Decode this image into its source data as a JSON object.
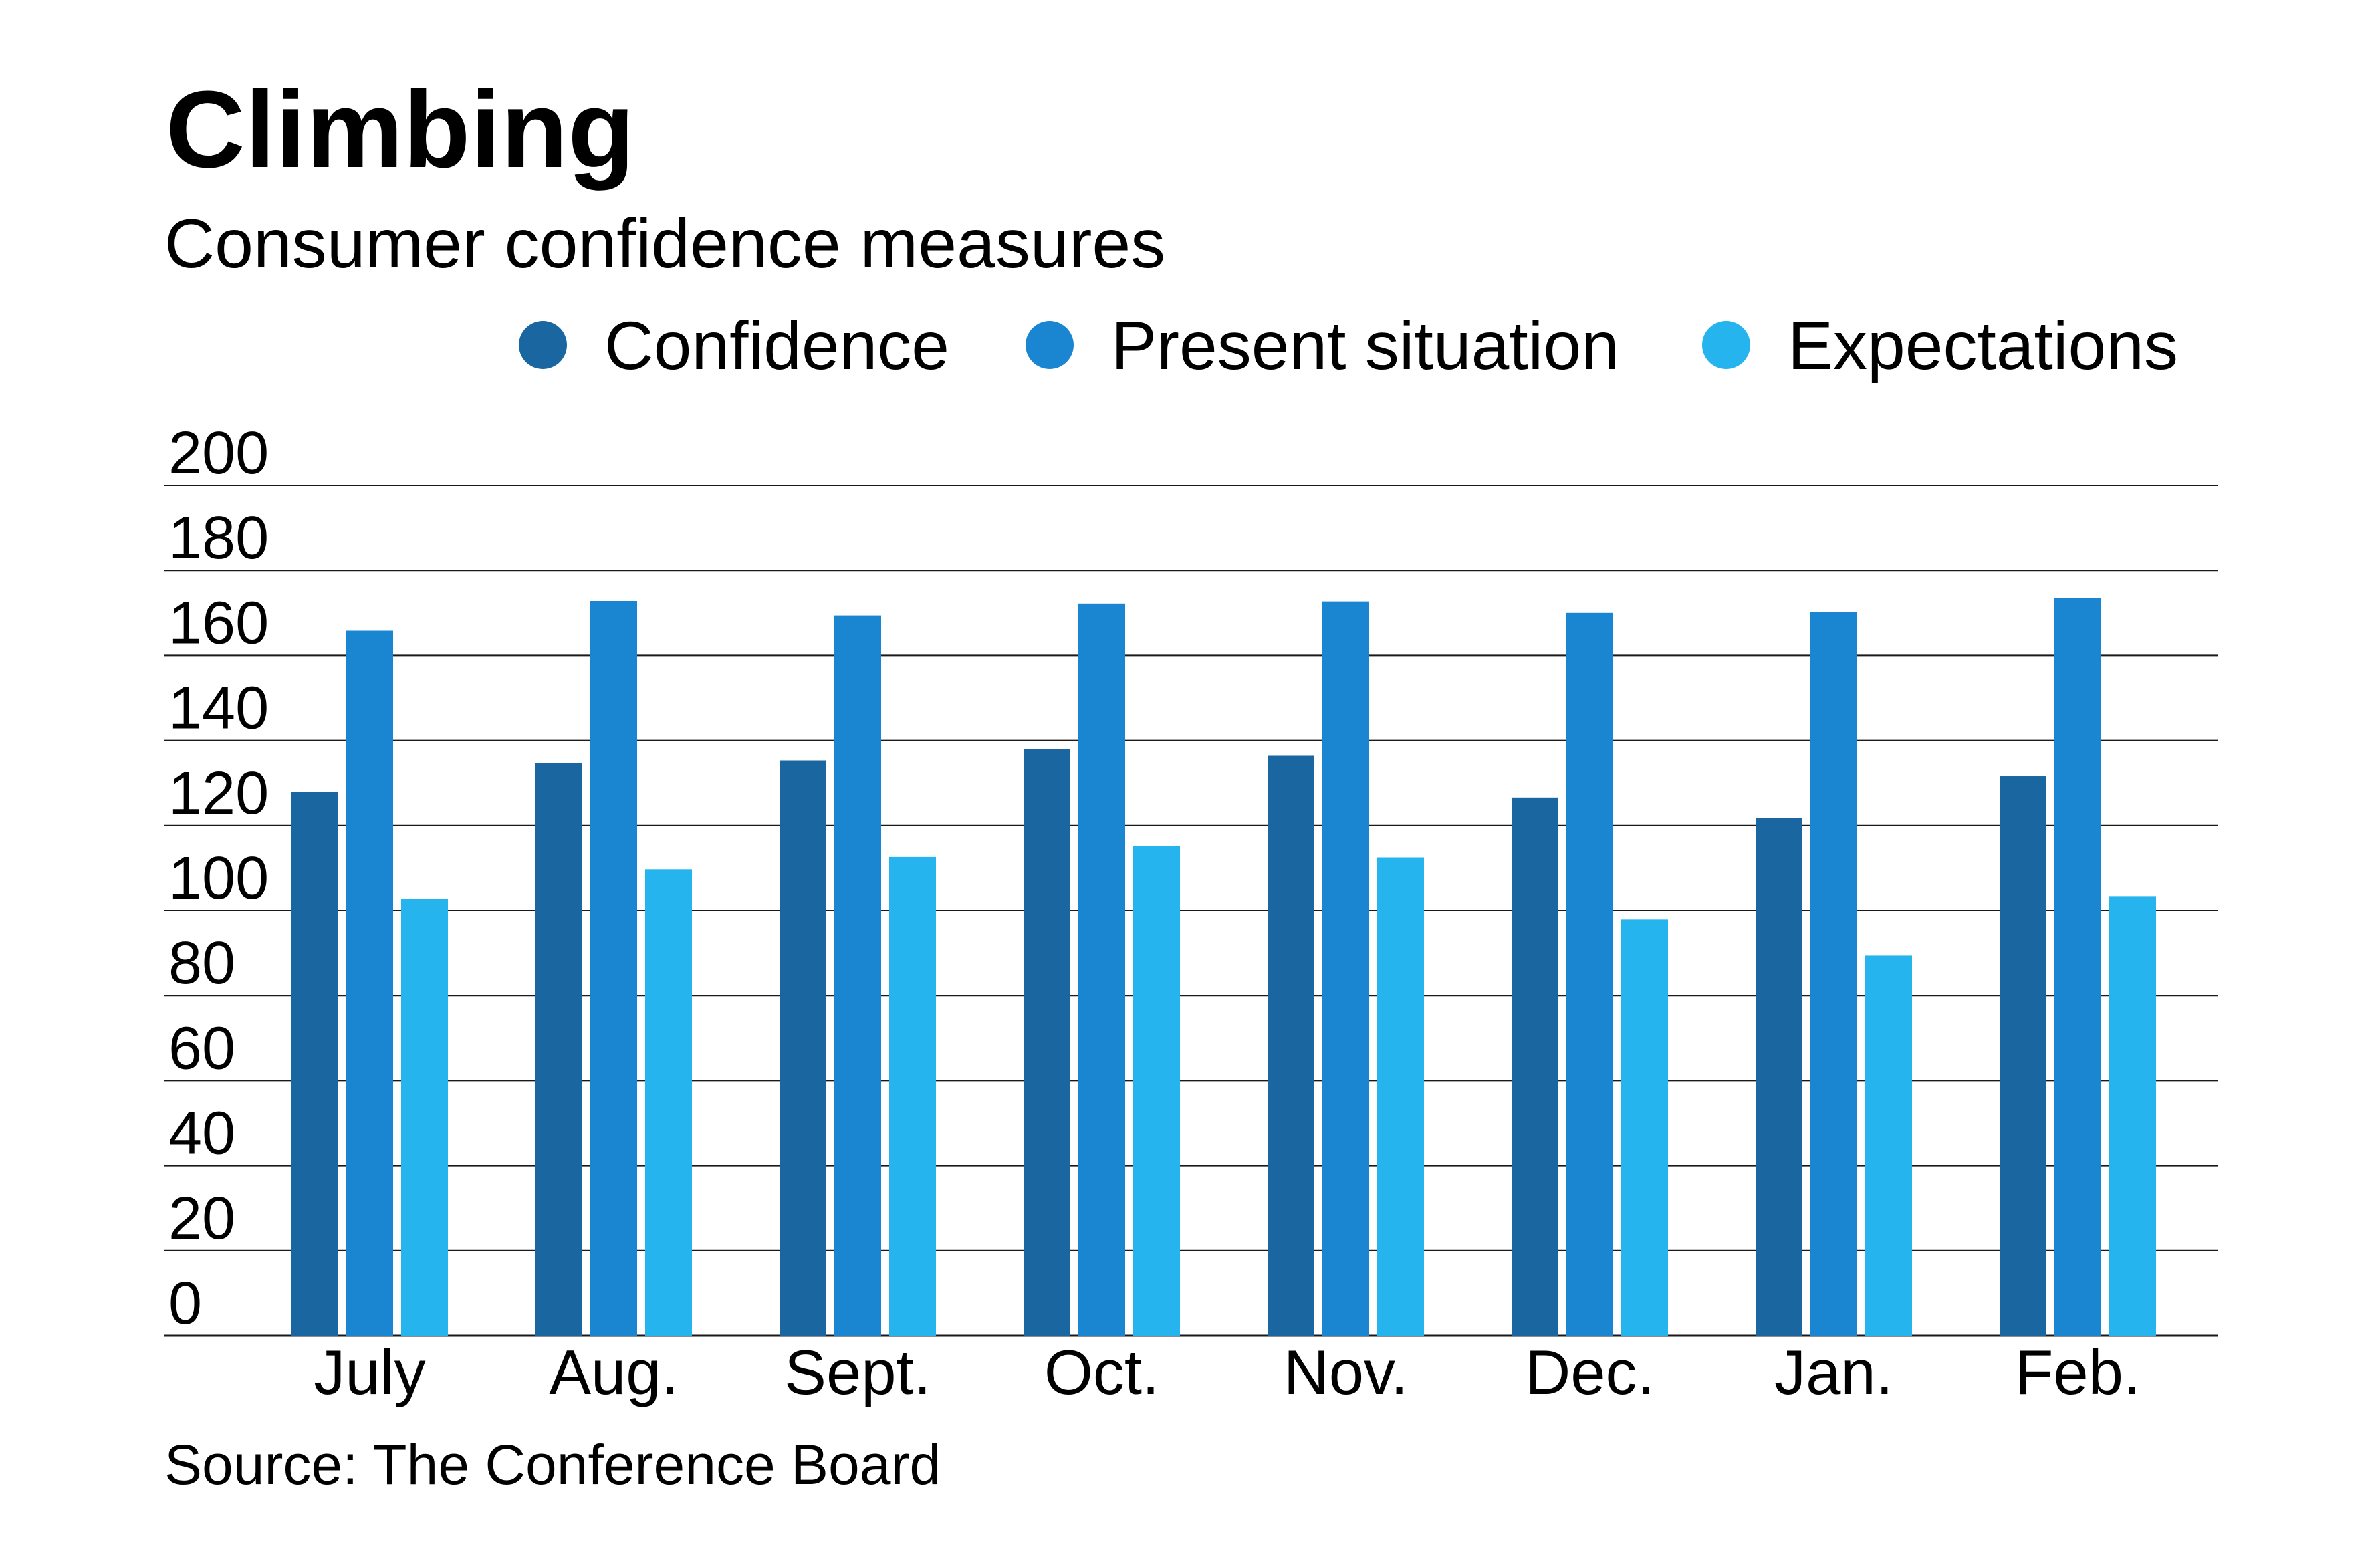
{
  "title": "Climbing",
  "subtitle": "Consumer confidence measures",
  "source": "Source: The Conference Board",
  "chart_data": {
    "type": "bar",
    "categories": [
      "July",
      "Aug.",
      "Sept.",
      "Oct.",
      "Nov.",
      "Dec.",
      "Jan.",
      "Feb."
    ],
    "series": [
      {
        "name": "Confidence",
        "color": "#1a66a0",
        "values": [
          127.9,
          134.7,
          135.3,
          137.9,
          136.4,
          126.6,
          121.7,
          131.6
        ]
      },
      {
        "name": "Present situation",
        "color": "#1a85d0",
        "values": [
          165.8,
          172.8,
          169.4,
          172.2,
          172.7,
          170.0,
          170.2,
          173.5
        ]
      },
      {
        "name": "Expectations",
        "color": "#25b4ee",
        "values": [
          102.7,
          109.7,
          112.6,
          115.1,
          112.5,
          97.9,
          89.4,
          103.4
        ]
      }
    ],
    "yticks": [
      0,
      20,
      40,
      60,
      80,
      100,
      120,
      140,
      160,
      180,
      200
    ],
    "ylim": [
      0,
      200
    ],
    "grid": true,
    "legend_position": "top-right"
  }
}
